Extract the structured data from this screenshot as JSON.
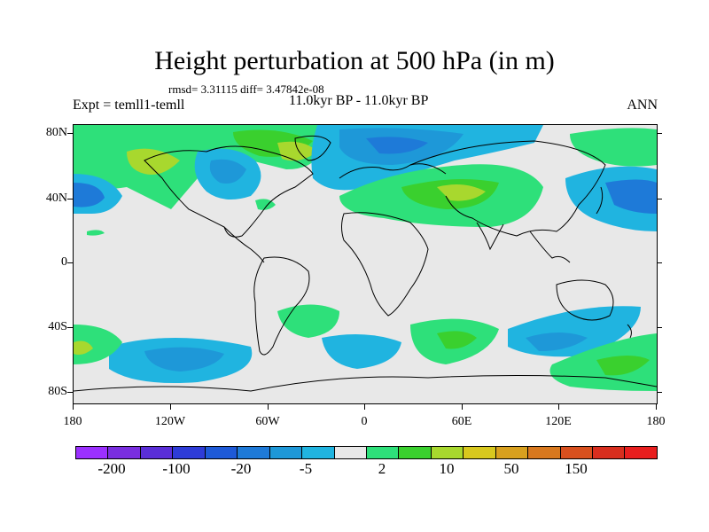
{
  "title": "Height perturbation at 500 hPa (in m)",
  "stats_line": "rmsd= 3.31115 diff= 3.47842e-08",
  "experiment_label": "Expt = temll1-temll",
  "period_label": "11.0kyr BP - 11.0kyr BP",
  "season_label": "ANN",
  "lat_labels": [
    "80N",
    "40N",
    "0",
    "40S",
    "80S"
  ],
  "lon_labels": [
    "180",
    "120W",
    "60W",
    "0",
    "60E",
    "120E",
    "180"
  ],
  "colorbar": {
    "colors": [
      "#9b30ff",
      "#7a2ee0",
      "#5a2ed8",
      "#2e3cd8",
      "#1e5ad8",
      "#1e7ad8",
      "#1e98d8",
      "#20b4e0",
      "#e8e8e8",
      "#2ee07a",
      "#3ad02e",
      "#a8d82e",
      "#d8c81e",
      "#d8a01e",
      "#d8781e",
      "#d8501e",
      "#d82e1e",
      "#e81e1e"
    ],
    "labels": [
      "-200",
      "-100",
      "-20",
      "-5",
      "2",
      "10",
      "50",
      "150"
    ]
  }
}
